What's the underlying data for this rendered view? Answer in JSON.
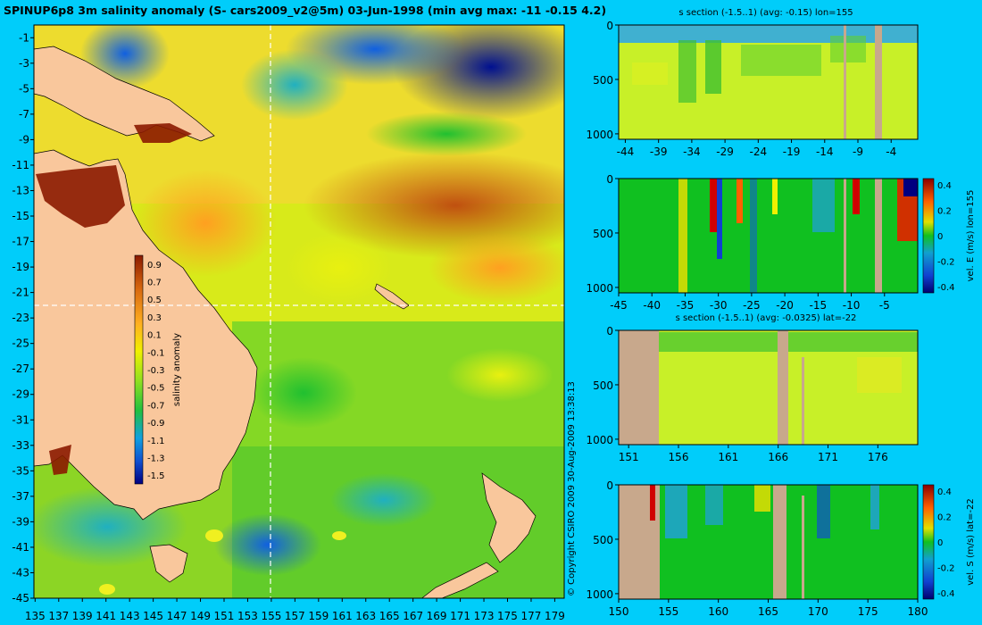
{
  "figure": {
    "title": "SPINUP6p8 3m salinity anomaly (S- cars2009_v2@5m) 03-Jun-1998 (min avg max: -11 -0.15 4.2)",
    "copyright": "© Copyright CSIRO 2009   30-Aug-2009 13:38:13",
    "colors": {
      "background": "#00cdfa",
      "land": "#f9c79c",
      "section_land": "#c8a88c",
      "axis_text": "#000000"
    }
  },
  "chart_data": [
    {
      "type": "heatmap",
      "name": "salinity-anomaly-map",
      "x_ticks": [
        "135",
        "137",
        "139",
        "141",
        "143",
        "145",
        "147",
        "149",
        "151",
        "153",
        "155",
        "157",
        "159",
        "161",
        "163",
        "165",
        "167",
        "169",
        "171",
        "173",
        "175",
        "177",
        "179"
      ],
      "y_ticks": [
        "-1",
        "-3",
        "-5",
        "-7",
        "-9",
        "-11",
        "-13",
        "-15",
        "-17",
        "-19",
        "-21",
        "-23",
        "-25",
        "-27",
        "-29",
        "-31",
        "-33",
        "-35",
        "-37",
        "-39",
        "-41",
        "-43",
        "-45"
      ],
      "xlim": [
        134.9,
        179.8
      ],
      "ylim": [
        -45,
        0
      ],
      "crosshair": {
        "lon": 155,
        "lat": -22
      },
      "colorbar": {
        "label": "salinity anomaly",
        "ticks": [
          "0.9",
          "0.7",
          "0.5",
          "0.3",
          "0.1",
          "-0.1",
          "-0.3",
          "-0.5",
          "-0.7",
          "-0.9",
          "-1.1",
          "-1.3",
          "-1.5"
        ],
        "range": [
          -1.6,
          1.0
        ]
      }
    },
    {
      "type": "heatmap",
      "name": "s-section-lon155",
      "title": "s section (-1.5..1) (avg: -0.15) lon=155",
      "x_ticks": [
        "-44",
        "-39",
        "-34",
        "-29",
        "-24",
        "-19",
        "-14",
        "-9",
        "-4"
      ],
      "y_ticks": [
        "0",
        "500",
        "1000"
      ],
      "xlim": [
        -45,
        0
      ],
      "ylim": [
        1050,
        0
      ]
    },
    {
      "type": "heatmap",
      "name": "vel-e-section-lon155",
      "x_ticks": [
        "-45",
        "-40",
        "-35",
        "-30",
        "-25",
        "-20",
        "-15",
        "-10",
        "-5"
      ],
      "y_ticks": [
        "0",
        "500",
        "1000"
      ],
      "xlim": [
        -45,
        0
      ],
      "ylim": [
        1050,
        0
      ],
      "colorbar": {
        "label": "vel. E (m/s) lon=155",
        "ticks": [
          "0.4",
          "0.2",
          "0",
          "-0.2",
          "-0.4"
        ],
        "range": [
          -0.45,
          0.45
        ]
      }
    },
    {
      "type": "heatmap",
      "name": "s-section-lat-22",
      "title": "s section (-1.5..1) (avg: -0.0325) lat=-22",
      "x_ticks": [
        "151",
        "156",
        "161",
        "166",
        "171",
        "176"
      ],
      "y_ticks": [
        "0",
        "500",
        "1000"
      ],
      "xlim": [
        150,
        180
      ],
      "ylim": [
        1050,
        0
      ]
    },
    {
      "type": "heatmap",
      "name": "vel-s-section-lat-22",
      "x_ticks": [
        "150",
        "155",
        "160",
        "165",
        "170",
        "175",
        "180"
      ],
      "y_ticks": [
        "0",
        "500",
        "1000"
      ],
      "xlim": [
        150,
        180
      ],
      "ylim": [
        1050,
        0
      ],
      "colorbar": {
        "label": "vel. S (m/s) lat=-22",
        "ticks": [
          "0.4",
          "0.2",
          "0",
          "-0.2",
          "-0.4"
        ],
        "range": [
          -0.45,
          0.45
        ]
      }
    }
  ]
}
